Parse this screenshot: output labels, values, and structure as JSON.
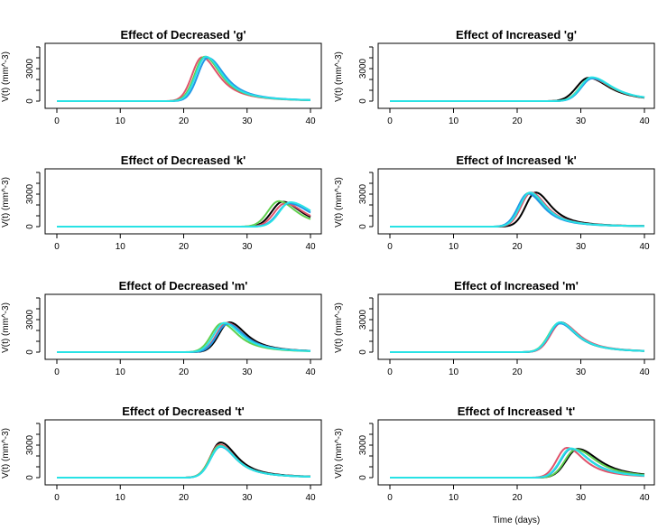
{
  "figure": {
    "xlabel": "Time (days)"
  },
  "chart_data": [
    {
      "type": "line",
      "title": "Effect of Decreased 'g'",
      "ylabel": "V(t) (mm^-3)",
      "xlabel": "",
      "xlim": [
        0,
        40
      ],
      "ylim": [
        0,
        5000
      ],
      "xticks": [
        0,
        10,
        20,
        30,
        40
      ],
      "yticks": [
        0,
        3000
      ],
      "grid": false,
      "series": [
        {
          "color": "#000000",
          "onset": 18,
          "peak_t": 23.4,
          "peak_v": 4100,
          "rise": 2.2,
          "decay": 3.2
        },
        {
          "color": "#DF536B",
          "onset": 17.5,
          "peak_t": 22.9,
          "peak_v": 4050,
          "rise": 2.2,
          "decay": 3.2
        },
        {
          "color": "#61D04F",
          "onset": 18,
          "peak_t": 23.3,
          "peak_v": 4100,
          "rise": 2.2,
          "decay": 3.2
        },
        {
          "color": "#2297E6",
          "onset": 18.5,
          "peak_t": 23.8,
          "peak_v": 4000,
          "rise": 2.2,
          "decay": 3.3
        },
        {
          "color": "#28E2E5",
          "onset": 18.2,
          "peak_t": 23.5,
          "peak_v": 4100,
          "rise": 2.2,
          "decay": 3.2
        }
      ]
    },
    {
      "type": "line",
      "title": "Effect of Increased 'g'",
      "ylabel": "V(t) (mm^-3)",
      "xlabel": "",
      "xlim": [
        0,
        40
      ],
      "ylim": [
        0,
        5000
      ],
      "xticks": [
        0,
        10,
        20,
        30,
        40
      ],
      "yticks": [
        0,
        3000
      ],
      "grid": false,
      "series": [
        {
          "color": "#000000",
          "onset": 24.5,
          "peak_t": 31.2,
          "peak_v": 2150,
          "rise": 2.6,
          "decay": 4.0
        },
        {
          "color": "#DF536B",
          "onset": 25.5,
          "peak_t": 31.6,
          "peak_v": 2100,
          "rise": 2.4,
          "decay": 4.0
        },
        {
          "color": "#61D04F",
          "onset": 25.5,
          "peak_t": 31.6,
          "peak_v": 2150,
          "rise": 2.4,
          "decay": 4.0
        },
        {
          "color": "#2297E6",
          "onset": 25.8,
          "peak_t": 31.8,
          "peak_v": 2100,
          "rise": 2.4,
          "decay": 4.0
        },
        {
          "color": "#28E2E5",
          "onset": 25.8,
          "peak_t": 31.7,
          "peak_v": 2200,
          "rise": 2.4,
          "decay": 4.0
        }
      ]
    },
    {
      "type": "line",
      "title": "Effect of Decreased 'k'",
      "ylabel": "V(t) (mm^-3)",
      "xlabel": "",
      "xlim": [
        0,
        40
      ],
      "ylim": [
        0,
        5000
      ],
      "xticks": [
        0,
        10,
        20,
        30,
        40
      ],
      "yticks": [
        0,
        3000
      ],
      "grid": false,
      "series": [
        {
          "color": "#000000",
          "onset": 29.5,
          "peak_t": 35.6,
          "peak_v": 2300,
          "rise": 2.4,
          "decay": 3.6
        },
        {
          "color": "#DF536B",
          "onset": 30.0,
          "peak_t": 36.0,
          "peak_v": 2150,
          "rise": 2.4,
          "decay": 3.8
        },
        {
          "color": "#61D04F",
          "onset": 29.0,
          "peak_t": 35.0,
          "peak_v": 2350,
          "rise": 2.4,
          "decay": 3.4
        },
        {
          "color": "#2297E6",
          "onset": 30.8,
          "peak_t": 36.6,
          "peak_v": 2150,
          "rise": 2.4,
          "decay": 4.2
        },
        {
          "color": "#28E2E5",
          "onset": 31.0,
          "peak_t": 36.8,
          "peak_v": 2250,
          "rise": 2.4,
          "decay": 4.4
        }
      ]
    },
    {
      "type": "line",
      "title": "Effect of Increased 'k'",
      "ylabel": "V(t) (mm^-3)",
      "xlabel": "",
      "xlim": [
        0,
        40
      ],
      "ylim": [
        0,
        5000
      ],
      "xticks": [
        0,
        10,
        20,
        30,
        40
      ],
      "yticks": [
        0,
        3000
      ],
      "grid": false,
      "series": [
        {
          "color": "#000000",
          "onset": 17.5,
          "peak_t": 22.9,
          "peak_v": 3150,
          "rise": 2.2,
          "decay": 3.0
        },
        {
          "color": "#DF536B",
          "onset": 17.0,
          "peak_t": 22.2,
          "peak_v": 3150,
          "rise": 2.2,
          "decay": 3.0
        },
        {
          "color": "#61D04F",
          "onset": 16.5,
          "peak_t": 21.8,
          "peak_v": 3100,
          "rise": 2.2,
          "decay": 3.0
        },
        {
          "color": "#2297E6",
          "onset": 16.5,
          "peak_t": 21.7,
          "peak_v": 3050,
          "rise": 2.2,
          "decay": 3.0
        },
        {
          "color": "#28E2E5",
          "onset": 16.8,
          "peak_t": 22.0,
          "peak_v": 3150,
          "rise": 2.2,
          "decay": 3.0
        }
      ]
    },
    {
      "type": "line",
      "title": "Effect of Decreased 'm'",
      "ylabel": "V(t) (mm^-3)",
      "xlabel": "",
      "xlim": [
        0,
        40
      ],
      "ylim": [
        0,
        5000
      ],
      "xticks": [
        0,
        10,
        20,
        30,
        40
      ],
      "yticks": [
        0,
        3000
      ],
      "grid": false,
      "series": [
        {
          "color": "#000000",
          "onset": 21.5,
          "peak_t": 27.2,
          "peak_v": 2750,
          "rise": 2.3,
          "decay": 3.3
        },
        {
          "color": "#DF536B",
          "onset": 21.0,
          "peak_t": 26.8,
          "peak_v": 2700,
          "rise": 2.3,
          "decay": 3.3
        },
        {
          "color": "#61D04F",
          "onset": 20.5,
          "peak_t": 26.0,
          "peak_v": 2650,
          "rise": 2.3,
          "decay": 3.2
        },
        {
          "color": "#2297E6",
          "onset": 21.2,
          "peak_t": 26.9,
          "peak_v": 2600,
          "rise": 2.3,
          "decay": 3.3
        },
        {
          "color": "#28E2E5",
          "onset": 20.8,
          "peak_t": 26.4,
          "peak_v": 2700,
          "rise": 2.3,
          "decay": 3.3
        }
      ]
    },
    {
      "type": "line",
      "title": "Effect of Increased 'm'",
      "ylabel": "V(t) (mm^-3)",
      "xlabel": "",
      "xlim": [
        0,
        40
      ],
      "ylim": [
        0,
        5000
      ],
      "xticks": [
        0,
        10,
        20,
        30,
        40
      ],
      "yticks": [
        0,
        3000
      ],
      "grid": false,
      "series": [
        {
          "color": "#000000",
          "onset": 21.2,
          "peak_t": 26.8,
          "peak_v": 2750,
          "rise": 2.3,
          "decay": 3.3
        },
        {
          "color": "#DF536B",
          "onset": 21.3,
          "peak_t": 26.9,
          "peak_v": 2700,
          "rise": 2.3,
          "decay": 3.4
        },
        {
          "color": "#61D04F",
          "onset": 21.0,
          "peak_t": 26.6,
          "peak_v": 2700,
          "rise": 2.3,
          "decay": 3.3
        },
        {
          "color": "#2297E6",
          "onset": 21.0,
          "peak_t": 26.7,
          "peak_v": 2650,
          "rise": 2.3,
          "decay": 3.3
        },
        {
          "color": "#28E2E5",
          "onset": 21.1,
          "peak_t": 26.7,
          "peak_v": 2750,
          "rise": 2.3,
          "decay": 3.3
        }
      ]
    },
    {
      "type": "line",
      "title": "Effect of Decreased 't'",
      "ylabel": "V(t) (mm^-3)",
      "xlabel": "",
      "xlim": [
        0,
        40
      ],
      "ylim": [
        0,
        5000
      ],
      "xticks": [
        0,
        10,
        20,
        30,
        40
      ],
      "yticks": [
        0,
        3000
      ],
      "grid": false,
      "series": [
        {
          "color": "#000000",
          "onset": 20.5,
          "peak_t": 25.8,
          "peak_v": 3250,
          "rise": 2.2,
          "decay": 3.2
        },
        {
          "color": "#DF536B",
          "onset": 20.5,
          "peak_t": 25.7,
          "peak_v": 3050,
          "rise": 2.2,
          "decay": 3.1
        },
        {
          "color": "#61D04F",
          "onset": 20.5,
          "peak_t": 25.7,
          "peak_v": 2950,
          "rise": 2.2,
          "decay": 3.1
        },
        {
          "color": "#2297E6",
          "onset": 20.6,
          "peak_t": 25.8,
          "peak_v": 2850,
          "rise": 2.2,
          "decay": 3.1
        },
        {
          "color": "#28E2E5",
          "onset": 20.6,
          "peak_t": 25.8,
          "peak_v": 2900,
          "rise": 2.2,
          "decay": 3.1
        }
      ]
    },
    {
      "type": "line",
      "title": "Effect of Increased 't'",
      "ylabel": "V(t) (mm^-3)",
      "xlabel": "",
      "xlim": [
        0,
        40
      ],
      "ylim": [
        0,
        5000
      ],
      "xticks": [
        0,
        10,
        20,
        30,
        40
      ],
      "yticks": [
        0,
        3000
      ],
      "grid": false,
      "series": [
        {
          "color": "#000000",
          "onset": 23.5,
          "peak_t": 29.5,
          "peak_v": 2650,
          "rise": 2.5,
          "decay": 4.2
        },
        {
          "color": "#DF536B",
          "onset": 22.5,
          "peak_t": 27.8,
          "peak_v": 2750,
          "rise": 2.2,
          "decay": 3.4
        },
        {
          "color": "#61D04F",
          "onset": 23.5,
          "peak_t": 29.2,
          "peak_v": 2600,
          "rise": 2.4,
          "decay": 4.0
        },
        {
          "color": "#2297E6",
          "onset": 23.0,
          "peak_t": 28.5,
          "peak_v": 2650,
          "rise": 2.3,
          "decay": 3.7
        },
        {
          "color": "#28E2E5",
          "onset": 23.0,
          "peak_t": 28.4,
          "peak_v": 2700,
          "rise": 2.3,
          "decay": 3.6
        }
      ]
    }
  ]
}
